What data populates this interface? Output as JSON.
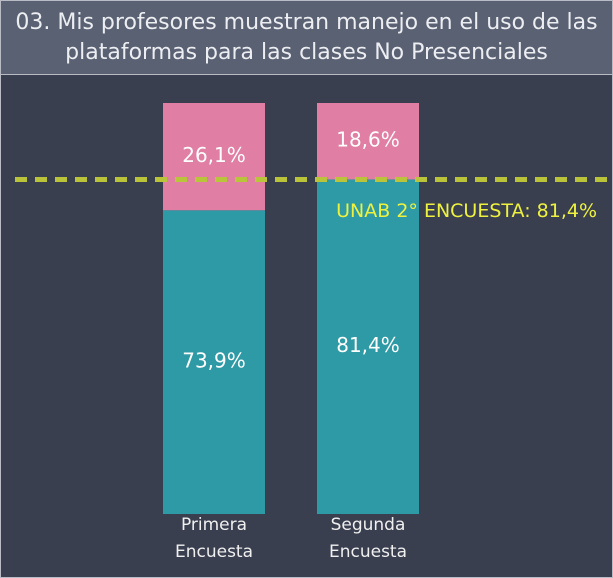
{
  "chart_data": {
    "type": "stacked_bar",
    "title": "03. Mis profesores muestran manejo en el uso de las plataformas para las clases No Presenciales",
    "categories": [
      "Primera Encuesta",
      "Segunda Encuesta"
    ],
    "series": [
      {
        "color": "#2e9aa5",
        "values": [
          73.9,
          81.4
        ],
        "value_labels": [
          "73,9%",
          "81,4%"
        ]
      },
      {
        "color": "#e07fa3",
        "values": [
          26.1,
          18.6
        ],
        "value_labels": [
          "26,1%",
          "18,6%"
        ]
      }
    ],
    "ylim": [
      0,
      100
    ],
    "reference_line": {
      "value": 81.4,
      "label": "UNAB 2° ENCUESTA: 81,4%",
      "color": "#b9c43a",
      "label_color": "#eef23e"
    }
  }
}
